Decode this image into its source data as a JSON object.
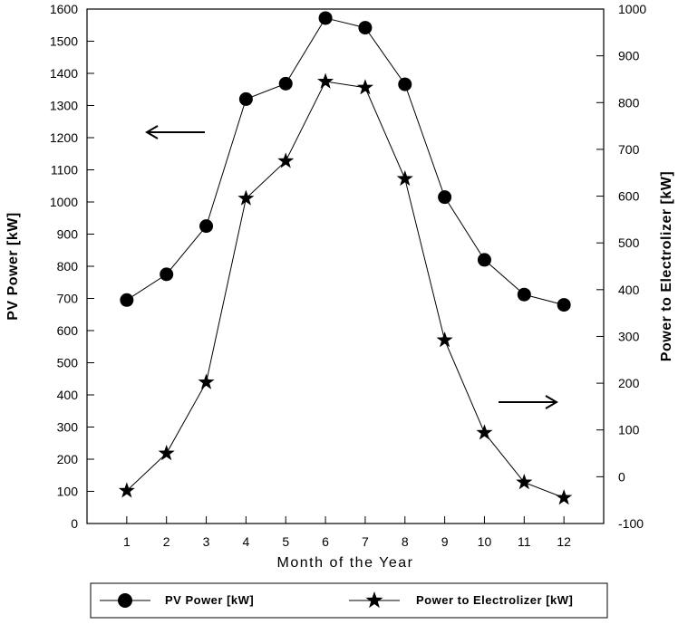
{
  "chart_data": {
    "type": "line",
    "x": [
      1,
      2,
      3,
      4,
      5,
      6,
      7,
      8,
      9,
      10,
      11,
      12
    ],
    "xlabel": "Month of the Year",
    "xlim": [
      0,
      13
    ],
    "y_left": {
      "label": "PV  Power [kW]",
      "lim": [
        0,
        1600
      ],
      "ticks": [
        0,
        100,
        200,
        300,
        400,
        500,
        600,
        700,
        800,
        900,
        1000,
        1100,
        1200,
        1300,
        1400,
        1500,
        1600
      ]
    },
    "y_right": {
      "label": "Power to Electrolizer [kW]",
      "lim": [
        -100,
        1000
      ],
      "ticks": [
        -100,
        0,
        100,
        200,
        300,
        400,
        500,
        600,
        700,
        800,
        900,
        1000
      ]
    },
    "series": [
      {
        "name": "PV Power [kW]",
        "axis": "left",
        "marker": "circle",
        "values": [
          695,
          775,
          925,
          1320,
          1368,
          1572,
          1542,
          1366,
          1015,
          820,
          712,
          680
        ]
      },
      {
        "name": "Power to Electrolizer [kW]",
        "axis": "right",
        "marker": "star",
        "values": [
          -30,
          50,
          202,
          595,
          675,
          845,
          832,
          637,
          292,
          94,
          -12,
          -45
        ]
      }
    ],
    "annotations": [
      {
        "type": "arrow",
        "direction": "left",
        "meaning": "points to left axis (PV Power)"
      },
      {
        "type": "arrow",
        "direction": "right",
        "meaning": "points to right axis (Power to Electrolizer)"
      }
    ],
    "grid": false,
    "legend_position": "bottom"
  }
}
